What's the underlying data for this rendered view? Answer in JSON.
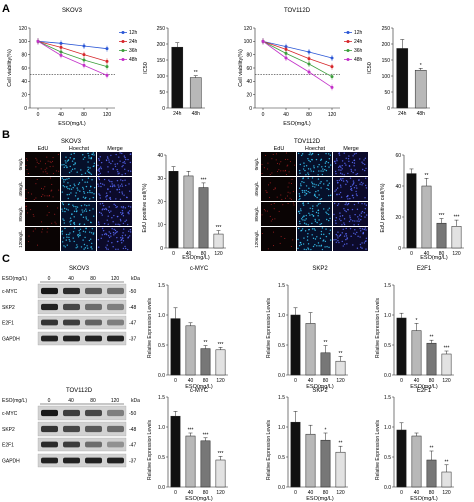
{
  "panel_labels": {
    "a": "A",
    "b": "B",
    "c": "C"
  },
  "common": {
    "eso_label": "ESO(mg/L)",
    "cell_viability": "Cell viability(%)",
    "ic50": "IC50",
    "edu_positive": "EdU positive cell(%)",
    "rel_expr": "Relative Expression Levels",
    "kda": "kDa",
    "edu": "EdU",
    "hoechst": "Hoechst",
    "merge": "Merge"
  },
  "colors": {
    "12h": "#2b57d6",
    "24h": "#d6262a",
    "36h": "#3a9e3a",
    "48h": "#c330c9",
    "bar0": "#111111",
    "bar1": "#b8b8b8",
    "bar2": "#777777",
    "bar3": "#e2e2e2"
  },
  "panel_b": {
    "rows": [
      "0mg/L",
      "40mg/L",
      "80mg/L",
      "120mg/L"
    ]
  },
  "panel_c": {
    "top_title": "SKOV3",
    "bottom_title": "TOV112D",
    "blot_label": "ESO(mg/L)",
    "blot_doses": [
      "0",
      "40",
      "80",
      "120"
    ],
    "blots": [
      {
        "name": "c-MYC",
        "kda": "-50"
      },
      {
        "name": "SKP2",
        "kda": "-48"
      },
      {
        "name": "E2F1",
        "kda": "-47"
      },
      {
        "name": "GAPDH",
        "kda": "-37"
      }
    ]
  },
  "chart_data": [
    {
      "type": "line",
      "title": "SKOV3",
      "xlabel": "ESO(mg/L)",
      "ylabel": "Cell viability(%)",
      "x": [
        0,
        40,
        80,
        120
      ],
      "ylim": [
        0,
        120
      ],
      "yticks": [
        0,
        20,
        40,
        60,
        80,
        100,
        120
      ],
      "reference_line": 50,
      "legend": "top-right",
      "series": [
        {
          "name": "12h",
          "values": [
            100,
            97,
            93,
            89
          ]
        },
        {
          "name": "24h",
          "values": [
            100,
            91,
            80,
            70
          ]
        },
        {
          "name": "36h",
          "values": [
            100,
            84,
            72,
            62
          ]
        },
        {
          "name": "48h",
          "values": [
            100,
            79,
            64,
            49
          ]
        }
      ]
    },
    {
      "type": "bar",
      "ylabel": "IC50",
      "categories": [
        "24h",
        "48h"
      ],
      "values": [
        190,
        95
      ],
      "ylim": [
        0,
        250
      ],
      "yticks": [
        0,
        50,
        100,
        150,
        200,
        250
      ],
      "significance": [
        "",
        "**"
      ]
    },
    {
      "type": "line",
      "title": "TOV112D",
      "xlabel": "ESO(mg/L)",
      "ylabel": "Cell viability(%)",
      "x": [
        0,
        40,
        80,
        120
      ],
      "ylim": [
        0,
        120
      ],
      "yticks": [
        0,
        20,
        40,
        60,
        80,
        100,
        120
      ],
      "reference_line": 50,
      "legend": "top-right",
      "series": [
        {
          "name": "12h",
          "values": [
            100,
            92,
            84,
            75
          ]
        },
        {
          "name": "24h",
          "values": [
            100,
            88,
            74,
            62
          ]
        },
        {
          "name": "36h",
          "values": [
            100,
            82,
            66,
            47
          ]
        },
        {
          "name": "48h",
          "values": [
            100,
            75,
            54,
            31
          ]
        }
      ]
    },
    {
      "type": "bar",
      "ylabel": "IC50",
      "categories": [
        "24h",
        "48h"
      ],
      "values": [
        186,
        118
      ],
      "ylim": [
        0,
        250
      ],
      "yticks": [
        0,
        50,
        100,
        150,
        200,
        250
      ],
      "significance": [
        "",
        "*"
      ]
    },
    {
      "type": "bar",
      "title": "SKOV3",
      "ylabel": "EdU positive cell(%)",
      "xlabel": "ESO(mg/L)",
      "categories": [
        "0",
        "40",
        "80",
        "120"
      ],
      "values": [
        33,
        31,
        26,
        6
      ],
      "errors": [
        2,
        2,
        2,
        1.5
      ],
      "ylim": [
        0,
        40
      ],
      "yticks": [
        0,
        10,
        20,
        30,
        40
      ],
      "significance": [
        "",
        "",
        "***",
        "***"
      ]
    },
    {
      "type": "bar",
      "title": "TOV112D",
      "ylabel": "EdU positive cell(%)",
      "xlabel": "ESO(mg/L)",
      "categories": [
        "0",
        "40",
        "80",
        "120"
      ],
      "values": [
        48,
        40,
        16,
        14
      ],
      "errors": [
        3,
        5,
        3,
        4
      ],
      "ylim": [
        0,
        60
      ],
      "yticks": [
        0,
        20,
        40,
        60
      ],
      "significance": [
        "",
        "**",
        "***",
        "***"
      ]
    },
    {
      "type": "bar",
      "title": "c-MYC",
      "ylabel": "Relative Expression Levels",
      "xlabel": "ESO(mg/L)",
      "categories": [
        "0",
        "40",
        "80",
        "120"
      ],
      "values": [
        0.94,
        0.82,
        0.44,
        0.42
      ],
      "errors": [
        0.18,
        0.05,
        0.05,
        0.04
      ],
      "ylim": [
        0,
        1.5
      ],
      "yticks": [
        0.0,
        0.5,
        1.0,
        1.5
      ],
      "significance": [
        "",
        "",
        "**",
        "***"
      ]
    },
    {
      "type": "bar",
      "title": "SKP2",
      "ylabel": "Relative Expression Levels",
      "xlabel": "ESO(mg/L)",
      "categories": [
        "0",
        "40",
        "80",
        "120"
      ],
      "values": [
        1.0,
        0.86,
        0.37,
        0.23
      ],
      "errors": [
        0.12,
        0.18,
        0.12,
        0.08
      ],
      "ylim": [
        0,
        1.5
      ],
      "yticks": [
        0.0,
        0.5,
        1.0,
        1.5
      ],
      "significance": [
        "",
        "",
        "**",
        "**"
      ]
    },
    {
      "type": "bar",
      "title": "E2F1",
      "ylabel": "Relative Expression Levels",
      "xlabel": "ESO(mg/L)",
      "categories": [
        "0",
        "40",
        "80",
        "120"
      ],
      "values": [
        0.95,
        0.74,
        0.53,
        0.35
      ],
      "errors": [
        0.08,
        0.12,
        0.05,
        0.05
      ],
      "ylim": [
        0,
        1.5
      ],
      "yticks": [
        0.0,
        0.5,
        1.0,
        1.5
      ],
      "significance": [
        "",
        "*",
        "**",
        "***"
      ]
    },
    {
      "type": "bar",
      "title": "c-MYC",
      "ylabel": "Relative Expression Levels",
      "xlabel": "ESO(mg/L)",
      "categories": [
        "0",
        "40",
        "80",
        "120"
      ],
      "values": [
        1.18,
        0.85,
        0.77,
        0.45
      ],
      "errors": [
        0.08,
        0.05,
        0.05,
        0.06
      ],
      "ylim": [
        0,
        1.5
      ],
      "yticks": [
        0.0,
        0.5,
        1.0,
        1.5
      ],
      "significance": [
        "",
        "***",
        "***",
        "***"
      ]
    },
    {
      "type": "bar",
      "title": "SKP2",
      "ylabel": "Relative Expression Levels",
      "xlabel": "ESO(mg/L)",
      "categories": [
        "0",
        "40",
        "80",
        "120"
      ],
      "values": [
        1.08,
        0.88,
        0.78,
        0.58
      ],
      "errors": [
        0.18,
        0.15,
        0.12,
        0.1
      ],
      "ylim": [
        0,
        1.5
      ],
      "yticks": [
        0.0,
        0.5,
        1.0,
        1.5
      ],
      "significance": [
        "",
        "",
        "*",
        "**"
      ]
    },
    {
      "type": "bar",
      "title": "E2F1",
      "ylabel": "Relative Expression Levels",
      "xlabel": "ESO(mg/L)",
      "categories": [
        "0",
        "40",
        "80",
        "120"
      ],
      "values": [
        0.95,
        0.85,
        0.45,
        0.25
      ],
      "errors": [
        0.12,
        0.05,
        0.15,
        0.12
      ],
      "ylim": [
        0,
        1.5
      ],
      "yticks": [
        0.0,
        0.5,
        1.0,
        1.5
      ],
      "significance": [
        "",
        "",
        "**",
        "**"
      ]
    }
  ]
}
